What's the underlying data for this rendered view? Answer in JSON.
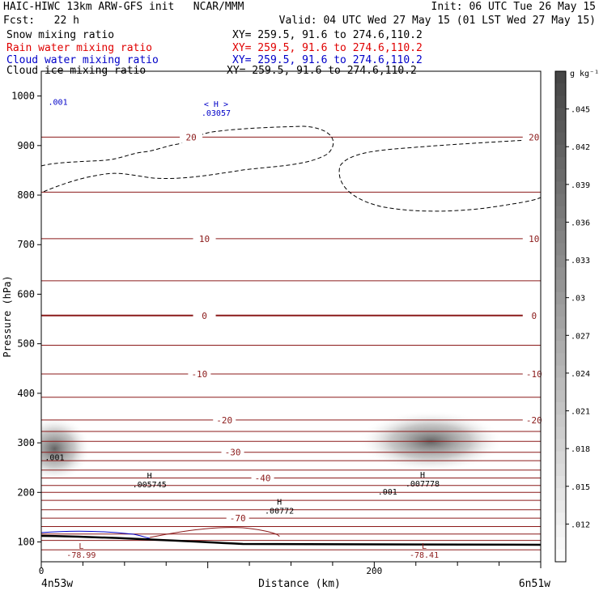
{
  "header": {
    "line1_left": "HAIC-HIWC 13km ARW-GFS init   NCAR/MMM",
    "line1_right": "Init: 06 UTC Tue 26 May 15",
    "line2_left": "Fcst:   22 h",
    "line2_right": "Valid: 04 UTC Wed 27 May 15 (01 LST Wed 27 May 15)"
  },
  "fields": [
    {
      "label": "Snow mixing ratio",
      "xy": "XY= 259.5, 91.6 to 274.6,110.2",
      "color": "#000000"
    },
    {
      "label": "Rain water mixing ratio",
      "xy": "XY= 259.5, 91.6 to 274.6,110.2",
      "color": "#e00000"
    },
    {
      "label": "Cloud water mixing ratio",
      "xy": "XY= 259.5, 91.6 to 274.6,110.2",
      "color": "#0000c8"
    },
    {
      "label": "Cloud ice mixing ratio",
      "xy": "XY= 259.5, 91.6 to 274.6,110.2",
      "color": "#000000"
    }
  ],
  "chart_data": {
    "type": "heatmap",
    "xlabel": "Distance (km)",
    "ylabel": "Pressure (hPa)",
    "xlim": [
      0,
      300
    ],
    "ylim": [
      1050,
      60
    ],
    "x_ticks": [
      0,
      200
    ],
    "x_end_labels": [
      "4n53w",
      "6n51w"
    ],
    "y_ticks": [
      100,
      200,
      300,
      400,
      500,
      600,
      700,
      800,
      900,
      1000
    ],
    "colorbar": {
      "unit": "g kg⁻¹",
      "min": 0.009,
      "max": 0.048,
      "labels": [
        ".045",
        ".042",
        ".039",
        ".036",
        ".033",
        ".03",
        ".027",
        ".024",
        ".021",
        ".018",
        ".015",
        ".012"
      ]
    },
    "temperature_isotherms": [
      {
        "label": "-70",
        "p": 148,
        "x": 118
      },
      {
        "label": "-40",
        "p": 229,
        "x": 133
      },
      {
        "label": "-30",
        "p": 281,
        "x": 115
      },
      {
        "label": "-20",
        "p": 346,
        "x": 110,
        "x2": 296
      },
      {
        "label": "-10",
        "p": 439,
        "x": 95,
        "x2": 296
      },
      {
        "label": "0",
        "p": 557,
        "x": 98,
        "x2": 296
      },
      {
        "label": "10",
        "p": 712,
        "x": 98,
        "x2": 296
      },
      {
        "label": "20",
        "p": 917,
        "x": 90,
        "x2": 296
      }
    ],
    "isotherm_levels_hpa": [
      84,
      103,
      116,
      131,
      148,
      165,
      184,
      200,
      214,
      229,
      245,
      264,
      281,
      303,
      323,
      346,
      392,
      439,
      497,
      557,
      627,
      712,
      806,
      917
    ],
    "annotations": [
      {
        "text": "L",
        "value": "-78.99",
        "x": 24,
        "p": 86,
        "color": "#8b1a1a"
      },
      {
        "text": "L",
        "value": "-78.41",
        "x": 230,
        "p": 86,
        "color": "#8b1a1a"
      },
      {
        "text": "H",
        "value": ".00772",
        "x": 143,
        "p": 175,
        "color": "#000000"
      },
      {
        "text": "H",
        "value": ".005745",
        "x": 65,
        "p": 228,
        "color": "#000000"
      },
      {
        "text": "H",
        "value": ".007778",
        "x": 229,
        "p": 230,
        "color": "#000000"
      },
      {
        "text": "< H >",
        "value": ".03057",
        "x": 105,
        "p": 978,
        "color": "#0000c8"
      }
    ],
    "contour_labels": [
      {
        "text": ".001",
        "x": 8,
        "p": 265,
        "color": "#000000"
      },
      {
        "text": ".001",
        "x": 208,
        "p": 196,
        "color": "#000000"
      },
      {
        "text": ".001",
        "x": 10,
        "p": 982,
        "color": "#0000c8"
      }
    ],
    "snow_maxima": [
      {
        "x": 8,
        "p": 288,
        "intensity": 0.045
      },
      {
        "x": 234,
        "p": 303,
        "intensity": 0.04
      }
    ]
  }
}
